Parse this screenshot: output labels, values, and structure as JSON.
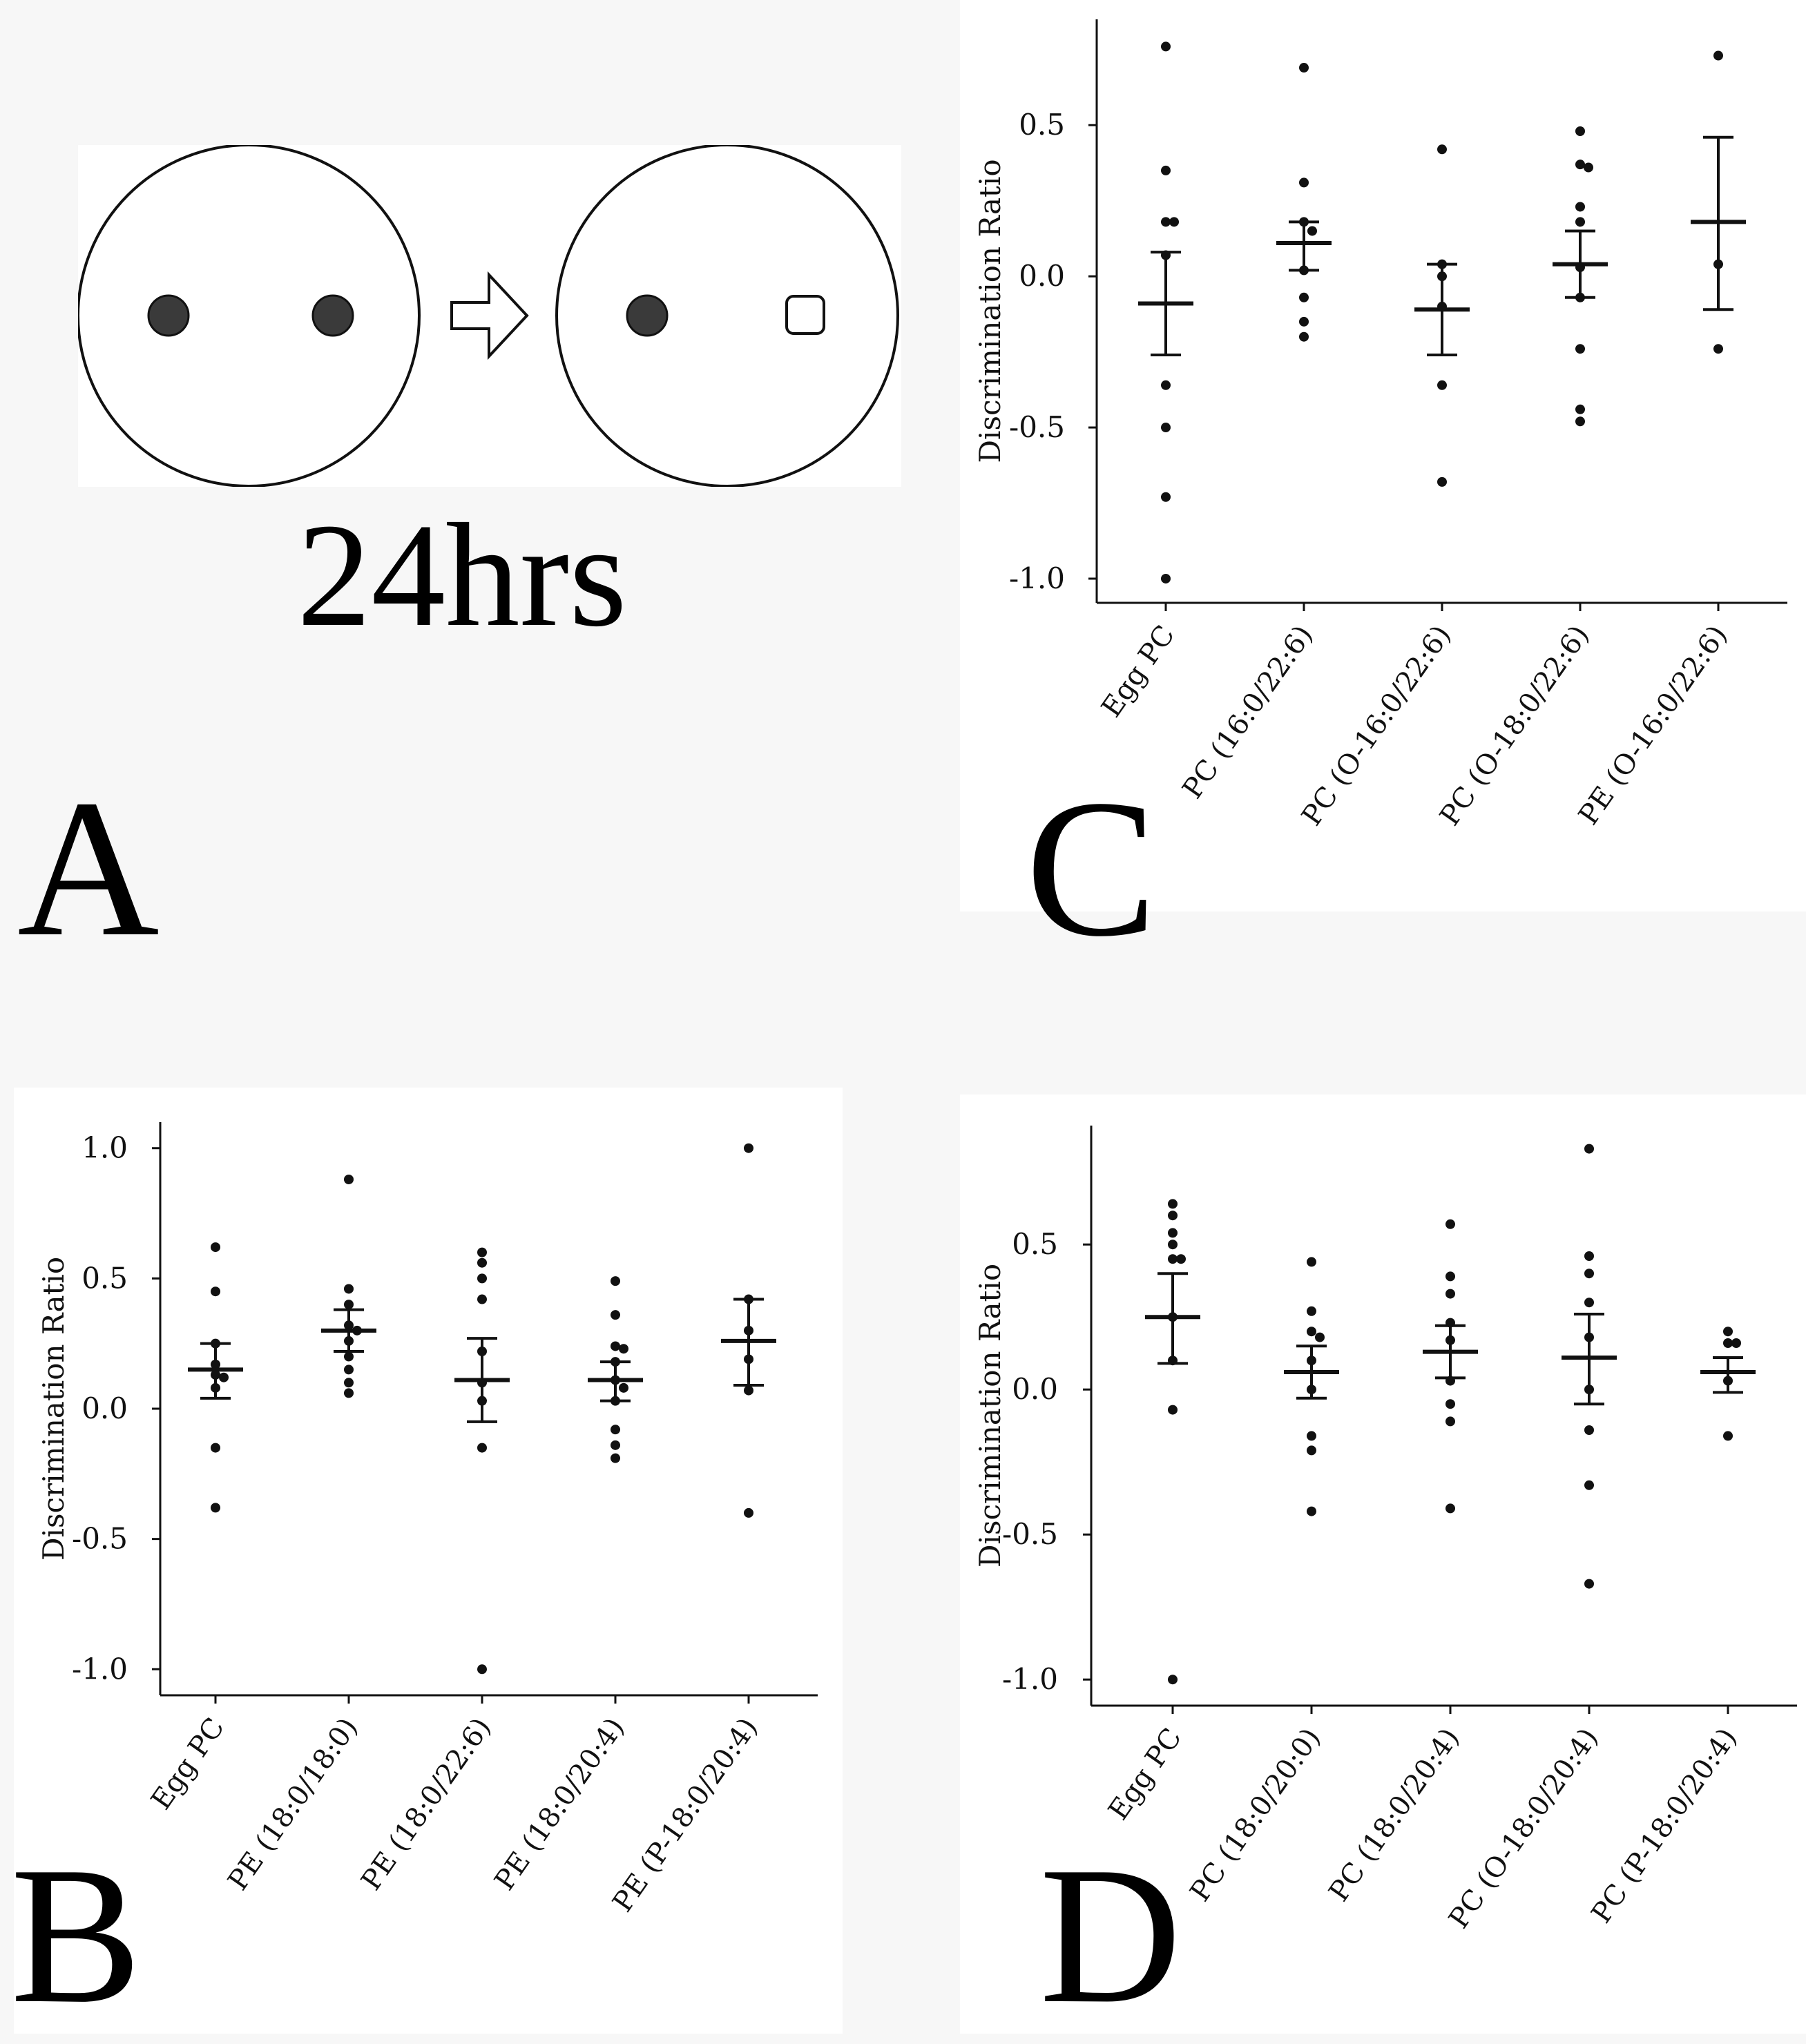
{
  "panel_a": {
    "letter": "A",
    "timing_label": "24hrs"
  },
  "chart_data": [
    {
      "panel": "B",
      "type": "scatter",
      "ylabel": "Discrimination Ratio",
      "ylim": [
        -1.1,
        1.1
      ],
      "yticks": [
        1.0,
        0.5,
        0.0,
        -0.5,
        -1.0
      ],
      "ytick_labels": [
        "1.0",
        "0.5",
        "0.0",
        "-0.5",
        "-1.0"
      ],
      "categories": [
        "Egg PC",
        "PE (18:0/18:0)",
        "PE (18:0/22:6)",
        "PE (18:0/20:4)",
        "PE (P-18:0/20:4)"
      ],
      "groups": [
        {
          "points": [
            0.62,
            0.45,
            0.25,
            0.17,
            0.13,
            0.12,
            0.08,
            -0.15,
            -0.38
          ],
          "mean": 0.15,
          "err_hi": 0.25,
          "err_lo": 0.04
        },
        {
          "points": [
            0.88,
            0.46,
            0.4,
            0.32,
            0.3,
            0.26,
            0.2,
            0.15,
            0.1,
            0.06
          ],
          "mean": 0.3,
          "err_hi": 0.38,
          "err_lo": 0.22
        },
        {
          "points": [
            0.6,
            0.56,
            0.5,
            0.42,
            0.22,
            0.1,
            0.03,
            -0.15,
            -1.0
          ],
          "mean": 0.11,
          "err_hi": 0.27,
          "err_lo": -0.05
        },
        {
          "points": [
            0.49,
            0.36,
            0.24,
            0.23,
            0.18,
            0.11,
            0.08,
            0.03,
            -0.08,
            -0.14,
            -0.19
          ],
          "mean": 0.11,
          "err_hi": 0.18,
          "err_lo": 0.03
        },
        {
          "points": [
            1.0,
            0.42,
            0.3,
            0.19,
            0.07,
            -0.4
          ],
          "mean": 0.26,
          "err_hi": 0.42,
          "err_lo": 0.09
        }
      ]
    },
    {
      "panel": "C",
      "type": "scatter",
      "ylabel": "Discrimination Ratio",
      "ylim": [
        -1.08,
        0.85
      ],
      "yticks": [
        0.5,
        0.0,
        -0.5,
        -1.0
      ],
      "ytick_labels": [
        "0.5",
        "0.0",
        "-0.5",
        "-1.0"
      ],
      "categories": [
        "Egg PC",
        "PC (16:0/22:6)",
        "PC (O-16:0/22:6)",
        "PC (O-18:0/22:6)",
        "PE (O-16:0/22:6)"
      ],
      "groups": [
        {
          "points": [
            0.76,
            0.35,
            0.18,
            0.18,
            0.07,
            -0.36,
            -0.5,
            -0.73,
            -1.0
          ],
          "mean": -0.09,
          "err_hi": 0.08,
          "err_lo": -0.26
        },
        {
          "points": [
            0.69,
            0.31,
            0.18,
            0.15,
            0.02,
            -0.07,
            -0.15,
            -0.2
          ],
          "mean": 0.11,
          "err_hi": 0.18,
          "err_lo": 0.02
        },
        {
          "points": [
            0.42,
            0.04,
            0.0,
            -0.1,
            -0.36,
            -0.68
          ],
          "mean": -0.11,
          "err_hi": 0.04,
          "err_lo": -0.26
        },
        {
          "points": [
            0.48,
            0.37,
            0.36,
            0.23,
            0.18,
            0.03,
            -0.07,
            -0.24,
            -0.44,
            -0.48
          ],
          "mean": 0.04,
          "err_hi": 0.15,
          "err_lo": -0.07
        },
        {
          "points": [
            0.73,
            0.04,
            -0.24
          ],
          "mean": 0.18,
          "err_hi": 0.46,
          "err_lo": -0.11
        }
      ]
    },
    {
      "panel": "D",
      "type": "scatter",
      "ylabel": "Discrimination Ratio",
      "ylim": [
        -1.09,
        0.91
      ],
      "yticks": [
        0.5,
        0.0,
        -0.5,
        -1.0
      ],
      "ytick_labels": [
        "0.5",
        "0.0",
        "-0.5",
        "-1.0"
      ],
      "categories": [
        "Egg PC",
        "PC (18:0/20:0)",
        "PC (18:0/20:4)",
        "PC (O-18:0/20:4)",
        "PC (P-18:0/20:4)"
      ],
      "groups": [
        {
          "points": [
            0.64,
            0.6,
            0.54,
            0.5,
            0.45,
            0.45,
            0.25,
            0.1,
            -0.07,
            -1.0
          ],
          "mean": 0.25,
          "err_hi": 0.4,
          "err_lo": 0.09
        },
        {
          "points": [
            0.44,
            0.27,
            0.2,
            0.18,
            0.1,
            0.0,
            -0.16,
            -0.21,
            -0.42
          ],
          "mean": 0.06,
          "err_hi": 0.15,
          "err_lo": -0.03
        },
        {
          "points": [
            0.57,
            0.39,
            0.33,
            0.23,
            0.17,
            0.03,
            -0.05,
            -0.11,
            -0.41
          ],
          "mean": 0.13,
          "err_hi": 0.22,
          "err_lo": 0.04
        },
        {
          "points": [
            0.83,
            0.46,
            0.4,
            0.3,
            0.18,
            0.0,
            -0.14,
            -0.33,
            -0.67
          ],
          "mean": 0.11,
          "err_hi": 0.26,
          "err_lo": -0.05
        },
        {
          "points": [
            0.2,
            0.16,
            0.16,
            0.03,
            -0.16
          ],
          "mean": 0.06,
          "err_hi": 0.11,
          "err_lo": -0.01
        }
      ]
    }
  ],
  "panel_letters": {
    "b": "B",
    "c": "C",
    "d": "D"
  }
}
